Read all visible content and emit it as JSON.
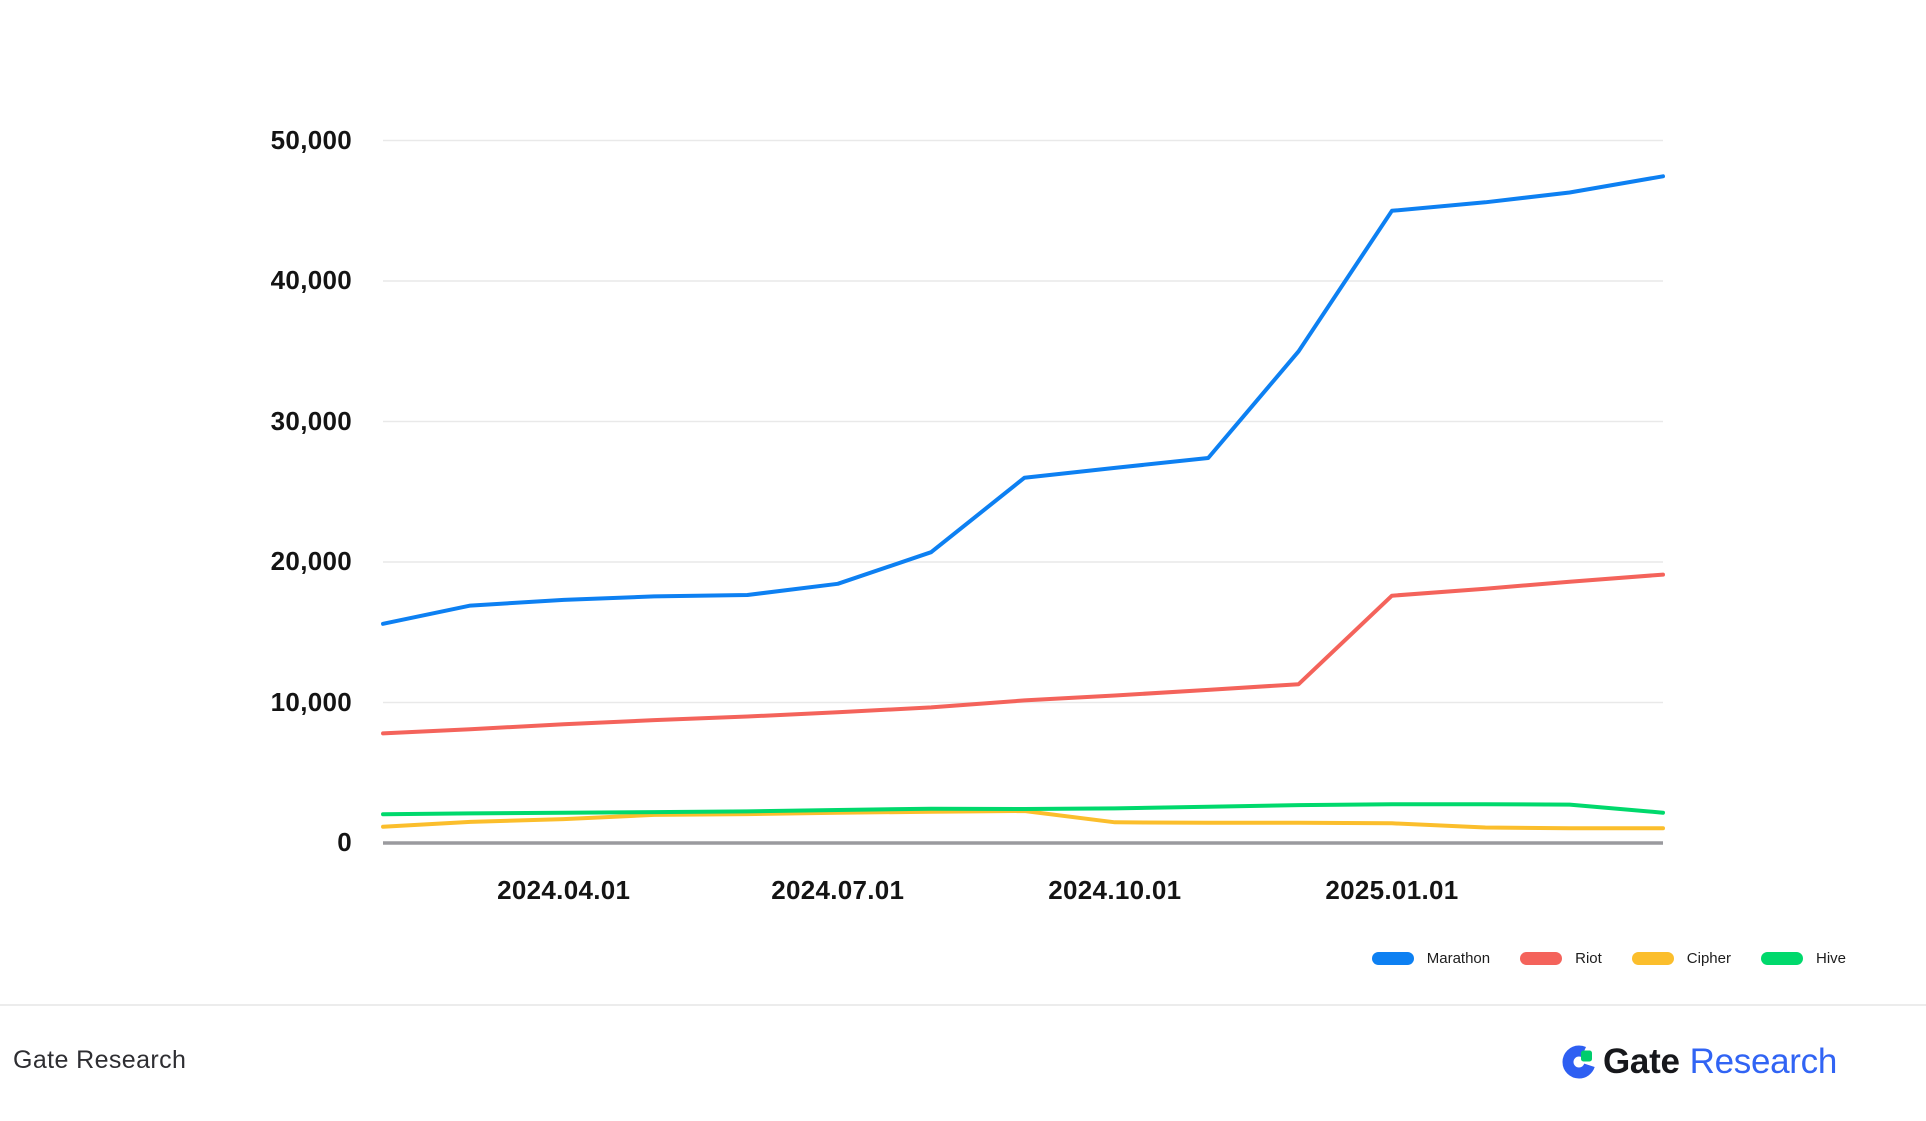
{
  "chart_data": {
    "type": "line",
    "x": [
      "2024-02-01",
      "2024-03-01",
      "2024-04-01",
      "2024-05-01",
      "2024-06-01",
      "2024-07-01",
      "2024-08-01",
      "2024-09-01",
      "2024-10-01",
      "2024-11-01",
      "2024-12-01",
      "2025-01-01",
      "2025-02-01",
      "2025-03-01",
      "2025-04-01"
    ],
    "series": [
      {
        "name": "Marathon",
        "color": "#0d80f2",
        "values": [
          15600,
          16900,
          17300,
          17550,
          17650,
          18450,
          20700,
          26000,
          26700,
          27400,
          35000,
          45000,
          45600,
          46300,
          47450
        ]
      },
      {
        "name": "Riot",
        "color": "#f4635b",
        "values": [
          7800,
          8100,
          8450,
          8750,
          9000,
          9300,
          9650,
          10150,
          10500,
          10900,
          11300,
          17600,
          18100,
          18600,
          19100
        ]
      },
      {
        "name": "Cipher",
        "color": "#fbbe2c",
        "values": [
          1150,
          1500,
          1700,
          2000,
          2060,
          2150,
          2230,
          2280,
          1470,
          1440,
          1440,
          1400,
          1100,
          1050,
          1050
        ]
      },
      {
        "name": "Hive",
        "color": "#00d96c",
        "values": [
          2050,
          2110,
          2150,
          2200,
          2250,
          2350,
          2440,
          2420,
          2460,
          2580,
          2700,
          2760,
          2760,
          2730,
          2160
        ]
      }
    ],
    "y_ticks": [
      {
        "value": 0,
        "label": "0"
      },
      {
        "value": 10000,
        "label": "10,000"
      },
      {
        "value": 20000,
        "label": "20,000"
      },
      {
        "value": 30000,
        "label": "30,000"
      },
      {
        "value": 40000,
        "label": "40,000"
      },
      {
        "value": 50000,
        "label": "50,000"
      }
    ],
    "x_ticks": [
      {
        "date": "2024-04-01",
        "label": "2024.04.01"
      },
      {
        "date": "2024-07-01",
        "label": "2024.07.01"
      },
      {
        "date": "2024-10-01",
        "label": "2024.10.01"
      },
      {
        "date": "2025-01-01",
        "label": "2025.01.01"
      }
    ],
    "ylim": [
      0,
      50000
    ],
    "grid": true,
    "legend_position": "bottom-right"
  },
  "colors": {
    "grid": "#e9e9e9",
    "axis": "#9a9a9e",
    "logo_blue": "#2e5ff2",
    "logo_green": "#00cd6d"
  },
  "footer": {
    "left_text": "Gate Research",
    "logo_text_gate": "Gate",
    "logo_text_research": "Research"
  }
}
